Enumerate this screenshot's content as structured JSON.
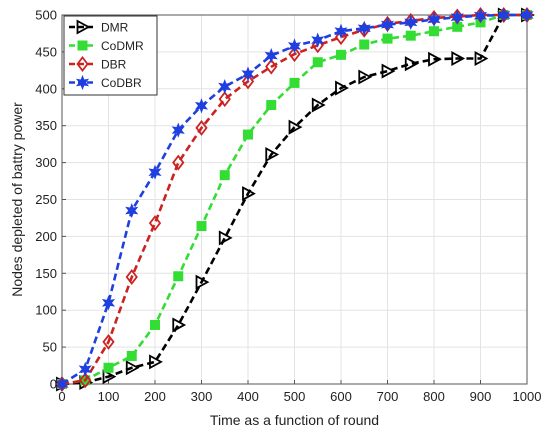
{
  "chart_data": {
    "type": "line",
    "title": "",
    "xlabel": "Time as a function of round",
    "ylabel": "Nodes depleted of battry power",
    "xlim": [
      0,
      1000
    ],
    "ylim": [
      0,
      500
    ],
    "xticks": [
      0,
      100,
      200,
      300,
      400,
      500,
      600,
      700,
      800,
      900,
      1000
    ],
    "yticks": [
      0,
      50,
      100,
      150,
      200,
      250,
      300,
      350,
      400,
      450,
      500
    ],
    "grid": true,
    "legend_position": "top-left",
    "series": [
      {
        "name": "DMR",
        "color": "#000000",
        "marker": "triangle-right",
        "x": [
          0,
          50,
          100,
          150,
          200,
          250,
          300,
          350,
          400,
          450,
          500,
          550,
          600,
          650,
          700,
          750,
          800,
          850,
          900,
          950,
          1000
        ],
        "y": [
          0,
          2,
          10,
          22,
          30,
          80,
          138,
          198,
          258,
          311,
          348,
          378,
          401,
          416,
          424,
          434,
          440,
          441,
          441,
          500,
          500
        ]
      },
      {
        "name": "CoDMR",
        "color": "#33dd33",
        "marker": "square",
        "x": [
          0,
          50,
          100,
          150,
          200,
          250,
          300,
          350,
          400,
          450,
          500,
          550,
          600,
          650,
          700,
          750,
          800,
          850,
          900,
          950,
          1000
        ],
        "y": [
          0,
          5,
          22,
          38,
          80,
          146,
          214,
          283,
          338,
          378,
          408,
          436,
          446,
          460,
          468,
          472,
          478,
          484,
          490,
          500,
          500
        ]
      },
      {
        "name": "DBR",
        "color": "#cc2222",
        "marker": "diamond",
        "x": [
          0,
          50,
          100,
          150,
          200,
          250,
          300,
          350,
          400,
          450,
          500,
          550,
          600,
          650,
          700,
          750,
          800,
          850,
          900,
          950,
          1000
        ],
        "y": [
          0,
          5,
          57,
          145,
          218,
          300,
          347,
          386,
          410,
          430,
          447,
          459,
          470,
          480,
          488,
          492,
          496,
          498,
          500,
          500,
          500
        ]
      },
      {
        "name": "CoDBR",
        "color": "#1f3fe0",
        "marker": "star",
        "x": [
          0,
          50,
          100,
          150,
          200,
          250,
          300,
          350,
          400,
          450,
          500,
          550,
          600,
          650,
          700,
          750,
          800,
          850,
          900,
          950,
          1000
        ],
        "y": [
          0,
          20,
          110,
          235,
          287,
          344,
          377,
          403,
          420,
          445,
          458,
          466,
          478,
          482,
          487,
          490,
          494,
          497,
          499,
          500,
          500
        ]
      }
    ]
  }
}
